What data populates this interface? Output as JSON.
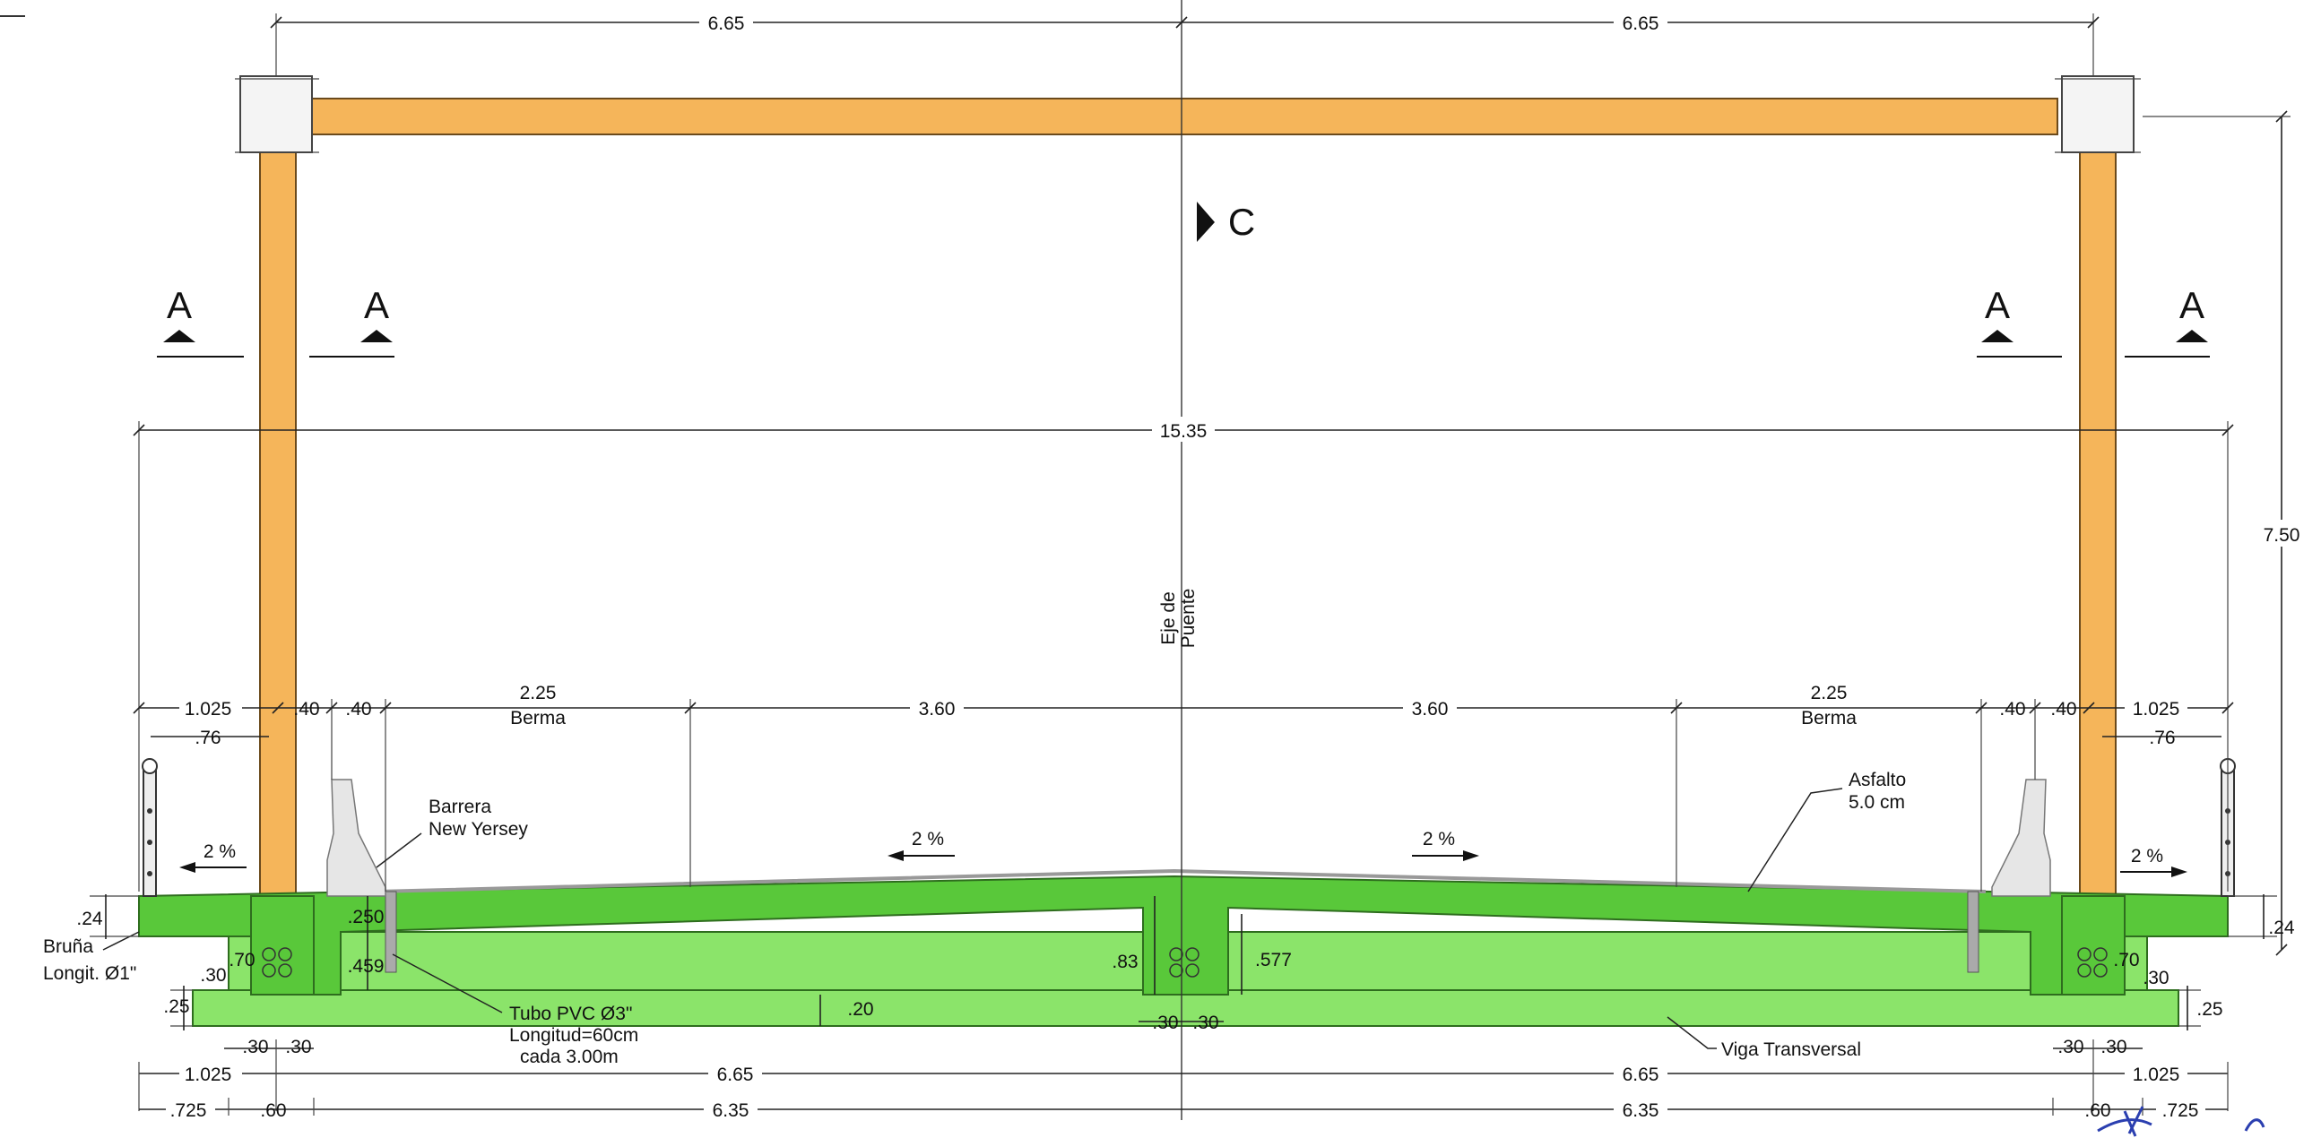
{
  "top_dims": {
    "left": "6.65",
    "right": "6.65"
  },
  "section_marks": {
    "a1": "A",
    "a2": "A",
    "a3": "A",
    "a4": "A",
    "c": "C"
  },
  "overall_width": "15.35",
  "height_dim": "7.50",
  "axis_label": {
    "line1": "Eje de",
    "line2": "Puente"
  },
  "deck_dims": {
    "l_1025": "1.025",
    "l_040a": ".40",
    "l_040b": ".40",
    "l_berma": "2.25",
    "l_berma_lbl": "Berma",
    "c_360a": "3.60",
    "c_360b": "3.60",
    "r_berma": "2.25",
    "r_berma_lbl": "Berma",
    "r_040a": ".40",
    "r_040b": ".40",
    "r_1025": "1.025",
    "l_076": ".76",
    "r_076": ".76"
  },
  "slopes": {
    "s1": "2 %",
    "s2": "2 %",
    "s3": "2 %",
    "s4": "2 %"
  },
  "labels": {
    "barrera1": "Barrera",
    "barrera2": "New Yersey",
    "asfalto1": "Asfalto",
    "asfalto2": "5.0 cm",
    "bruna1": "Bruña",
    "bruna2": "Longit. Ø1\"",
    "tubo1": "Tubo PVC Ø3\"",
    "tubo2": "Longitud=60cm",
    "tubo3": "cada 3.00m",
    "viga": "Viga Transversal"
  },
  "section_dims": {
    "l_024": ".24",
    "l_070": ".70",
    "l_030": ".30",
    "l_025": ".25",
    "d_250": ".250",
    "d_459": ".459",
    "d_083": ".83",
    "d_577": ".577",
    "d_020": ".20",
    "c_030a": ".30",
    "c_030b": ".30",
    "r_024": ".24",
    "r_070": ".70",
    "r_030": ".30",
    "r_025": ".25"
  },
  "bottom_dims": {
    "l_030a": ".30",
    "l_030b": ".30",
    "r_030a": ".30",
    "r_030b": ".30",
    "row1_l1025": "1.025",
    "row1_l665": "6.65",
    "row1_r665": "6.65",
    "row1_r1025": "1.025",
    "row2_l725": ".725",
    "row2_l060": ".60",
    "row2_l635": "6.35",
    "row2_r635": "6.35",
    "row2_r060": ".60",
    "row2_r725": ".725"
  },
  "colors": {
    "column": "#f5b55a",
    "deck": "#59c83a",
    "beam": "#8be46a"
  }
}
